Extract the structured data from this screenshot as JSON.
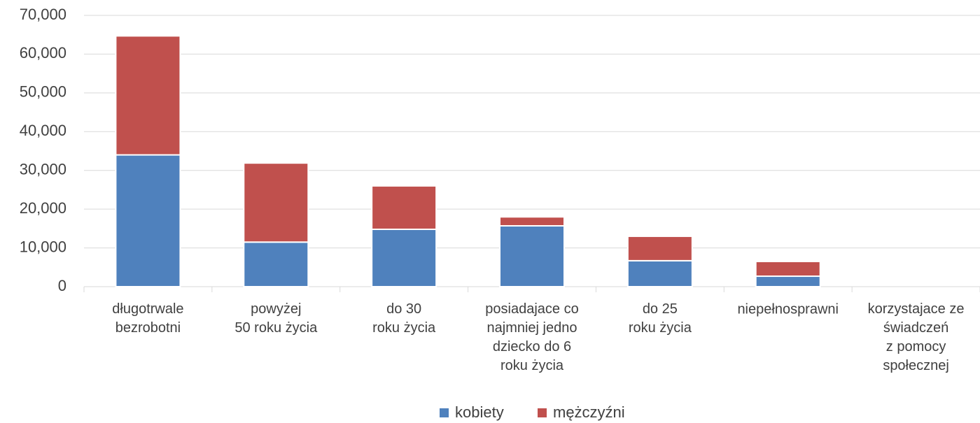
{
  "chart_data": {
    "type": "stacked_bar",
    "categories": [
      "długotrwale\nbezrobotni",
      "powyżej\n50 roku życia",
      "do 30\nroku życia",
      "posiadajace co\nnajmniej jedno\ndziecko do 6\nroku życia",
      "do 25\nroku życia",
      "niepełnosprawni",
      "korzystajace ze\nświadczeń\nz pomocy\nspołecznej"
    ],
    "series": [
      {
        "name": "kobiety",
        "color": "#4f81bd",
        "values": [
          34000,
          11500,
          14800,
          15700,
          6700,
          2700,
          0
        ]
      },
      {
        "name": "mężczyźni",
        "color": "#c0504d",
        "values": [
          30700,
          20400,
          11200,
          2300,
          6300,
          3800,
          0
        ]
      }
    ],
    "ylim": [
      0,
      70000
    ],
    "yticks": [
      0,
      {
        "value": 10000,
        "label": "10,000"
      },
      {
        "value": 20000,
        "label": "20,000"
      },
      {
        "value": 30000,
        "label": "30,000"
      },
      {
        "value": 40000,
        "label": "40,000"
      },
      {
        "value": 50000,
        "label": "50,000"
      },
      {
        "value": 60000,
        "label": "60,000"
      },
      {
        "value": 70000,
        "label": "70,000"
      }
    ],
    "grid": true,
    "legend": "bottom"
  }
}
